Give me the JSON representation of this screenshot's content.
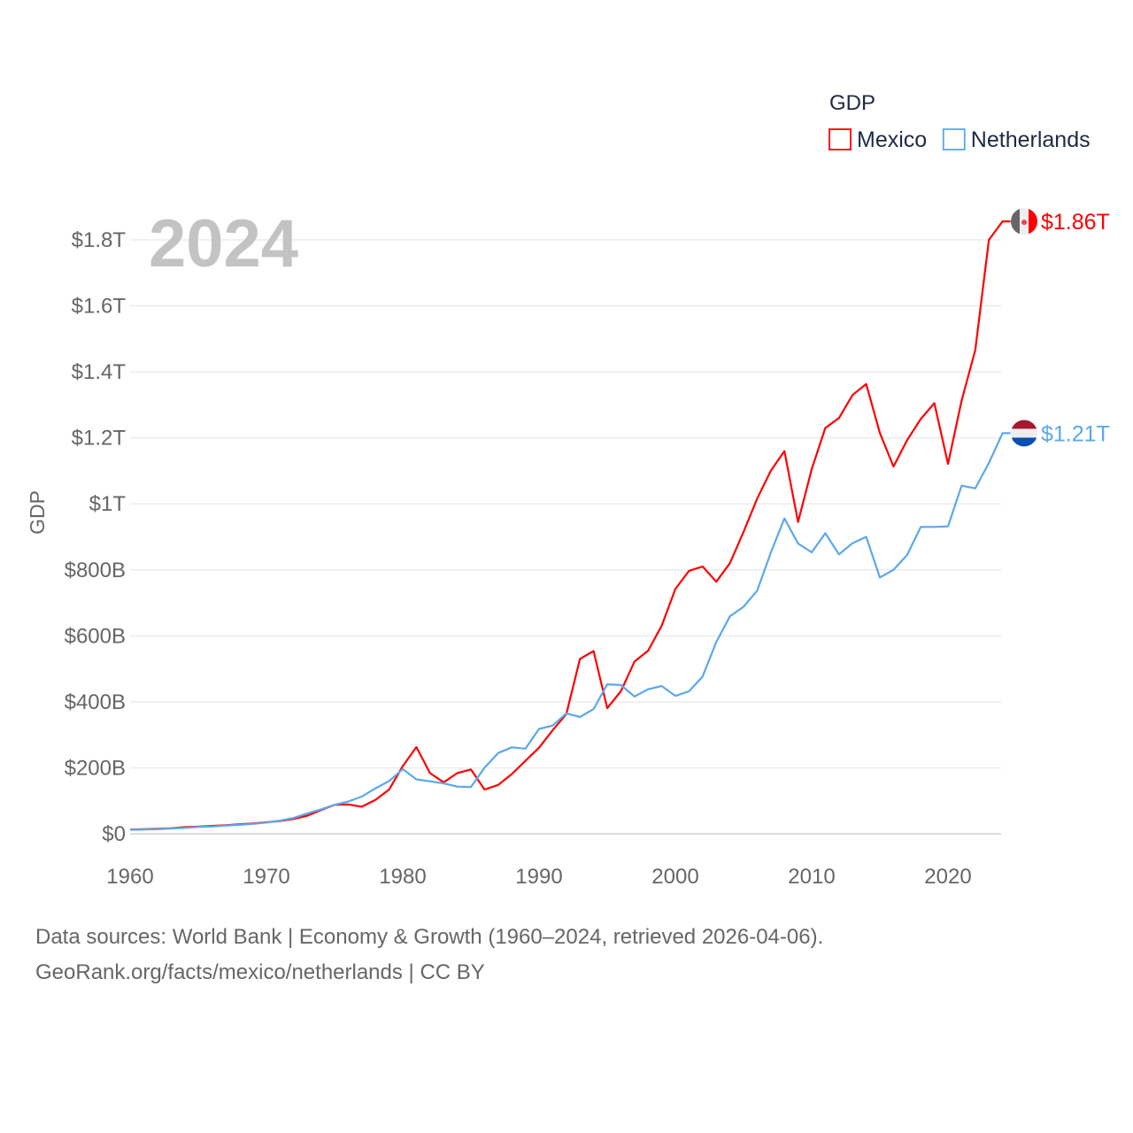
{
  "chart_data": {
    "type": "line",
    "title": "GDP",
    "ylabel": "GDP",
    "xlabel": "",
    "year_label": "2024",
    "xlim": [
      1960,
      2024
    ],
    "ylim": [
      0,
      1800
    ],
    "y_units": "billions USD",
    "x_ticks": [
      "1960",
      "1970",
      "1980",
      "1990",
      "2000",
      "2010",
      "2020"
    ],
    "y_ticks": [
      {
        "v": 0,
        "label": "$0"
      },
      {
        "v": 200,
        "label": "$200B"
      },
      {
        "v": 400,
        "label": "$400B"
      },
      {
        "v": 600,
        "label": "$600B"
      },
      {
        "v": 800,
        "label": "$800B"
      },
      {
        "v": 1000,
        "label": "$1T"
      },
      {
        "v": 1200,
        "label": "$1.2T"
      },
      {
        "v": 1400,
        "label": "$1.4T"
      },
      {
        "v": 1600,
        "label": "$1.6T"
      },
      {
        "v": 1800,
        "label": "$1.8T"
      }
    ],
    "grid": true,
    "legend_placement": "top-right",
    "series": [
      {
        "name": "Mexico",
        "color": "#ff0000",
        "end_label": "$1.86T",
        "flag": "mexico-flag",
        "values": [
          13,
          14,
          15,
          17,
          20,
          22,
          24,
          26,
          29,
          31,
          35,
          39,
          45,
          55,
          72,
          88,
          89,
          82,
          103,
          134,
          205,
          263,
          184,
          156,
          184,
          195,
          134,
          148,
          181,
          221,
          261,
          314,
          363,
          530,
          554,
          381,
          432,
          522,
          555,
          631,
          742,
          797,
          810,
          764,
          820,
          915,
          1016,
          1100,
          1160,
          945,
          1105,
          1230,
          1260,
          1330,
          1363,
          1215,
          1113,
          1193,
          1257,
          1305,
          1121,
          1313,
          1466,
          1800,
          1856
        ]
      },
      {
        "name": "Netherlands",
        "color": "#5ba8ec",
        "end_label": "$1.21T",
        "flag": "netherlands-flag",
        "values": [
          12,
          13,
          14,
          16,
          18,
          21,
          22,
          25,
          27,
          30,
          34,
          40,
          48,
          62,
          74,
          88,
          98,
          113,
          138,
          160,
          196,
          165,
          159,
          153,
          143,
          142,
          200,
          245,
          262,
          258,
          318,
          328,
          365,
          354,
          378,
          453,
          451,
          416,
          438,
          448,
          418,
          432,
          477,
          581,
          659,
          688,
          737,
          852,
          956,
          880,
          853,
          911,
          847,
          881,
          900,
          777,
          800,
          845,
          930,
          930,
          932,
          1055,
          1047,
          1124,
          1214
        ]
      }
    ]
  },
  "footer": {
    "line1": "Data sources: World Bank | Economy & Growth (1960–2024, retrieved 2026-04-06).",
    "line2": "GeoRank.org/facts/mexico/netherlands | CC BY"
  }
}
